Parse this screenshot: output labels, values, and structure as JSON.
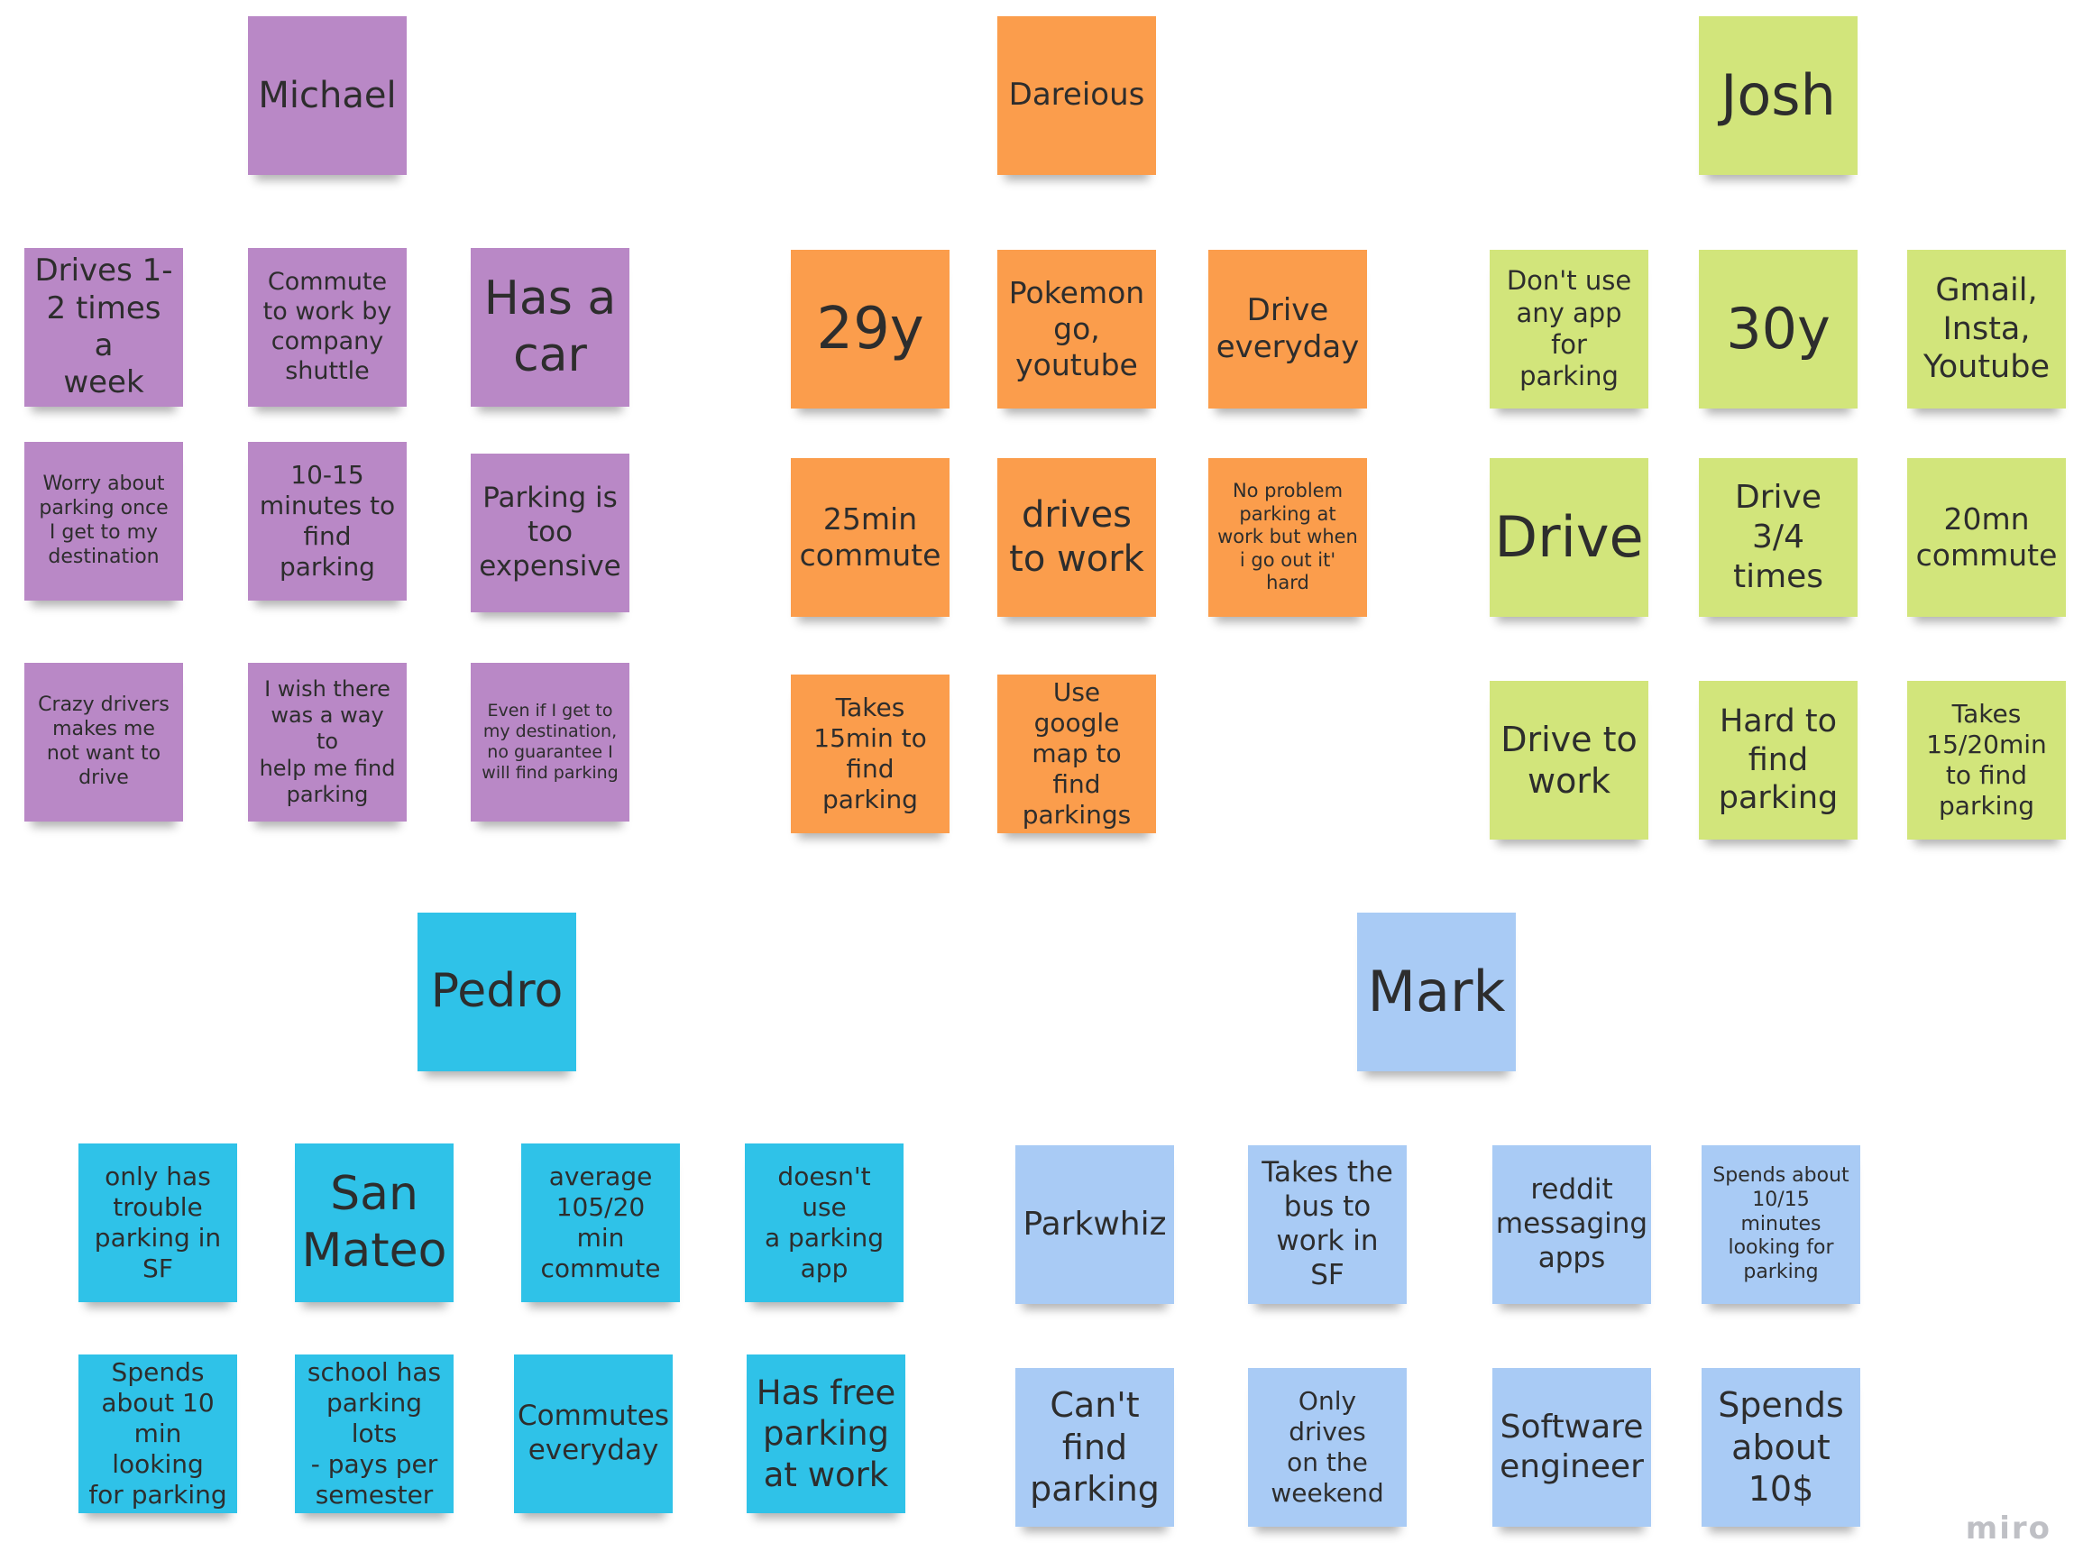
{
  "groups": {
    "michael": {
      "name": "Michael",
      "notes": [
        "Drives 1-\n2 times a\nweek",
        "Commute\nto work by\ncompany\nshuttle",
        "Has a\ncar",
        "Worry about\nparking once\nI get to my\ndestination",
        "10-15\nminutes to\nfind\nparking",
        "Parking is\ntoo\nexpensive",
        "Crazy drivers\nmakes me\nnot want to\ndrive",
        "I wish there\nwas a way to\nhelp me find\nparking",
        "Even if I get to\nmy destination,\nno guarantee I\nwill find parking"
      ]
    },
    "dareious": {
      "name": "Dareious",
      "notes": [
        "29y",
        "Pokemon\ngo,\nyoutube",
        "Drive\neveryday",
        "25min\ncommute",
        "drives\nto work",
        "No problem\nparking at\nwork but when\ni go out it' hard",
        "Takes\n15min to\nfind\nparking",
        "Use google\nmap to find\nparkings"
      ]
    },
    "josh": {
      "name": "Josh",
      "notes": [
        "Don't use\nany app\nfor parking",
        "30y",
        "Gmail,\nInsta,\nYoutube",
        "Drive",
        "Drive\n3/4\ntimes",
        "20mn\ncommute",
        "Drive to\nwork",
        "Hard to\nfind\nparking",
        "Takes\n15/20min\nto find\nparking"
      ]
    },
    "pedro": {
      "name": "Pedro",
      "notes": [
        "only has\ntrouble\nparking in\nSF",
        "San\nMateo",
        "average\n105/20 min\ncommute",
        "doesn't use\na parking\napp",
        "Spends\nabout 10\nmin looking\nfor parking",
        "school has\nparking lots\n- pays per\nsemester",
        "Commutes\neveryday",
        "Has free\nparking\nat work"
      ]
    },
    "mark": {
      "name": "Mark",
      "notes": [
        "Parkwhiz",
        "Takes the\nbus to\nwork in SF",
        "reddit\nmessaging\napps",
        "Spends about\n10/15 minutes\nlooking for\nparking",
        "Can't\nfind\nparking",
        "Only drives\non the\nweekend",
        "Software\nengineer",
        "Spends\nabout\n10$"
      ]
    }
  },
  "colors": {
    "purple": "#b988c6",
    "orange": "#fb9d4c",
    "lime": "#d2e57b",
    "cyan": "#2fc2e8",
    "blue": "#a9cbf5"
  },
  "watermark": "miro"
}
